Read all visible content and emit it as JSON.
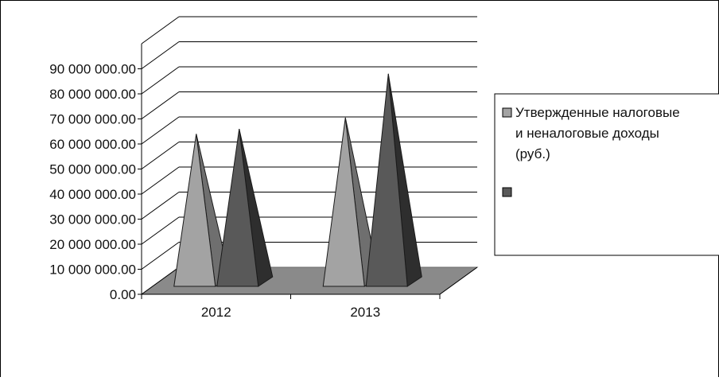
{
  "chart_data": {
    "type": "bar",
    "shape": "3d-cone",
    "categories": [
      "2012",
      "2013"
    ],
    "series": [
      {
        "name": "Утвержденные налоговые и неналоговые доходы (руб.)",
        "values": [
          64000000,
          70500000
        ]
      },
      {
        "name": "",
        "values": [
          66000000,
          88000000
        ]
      }
    ],
    "y_tick_labels": [
      "0.00",
      "10 000 000.00",
      "20 000 000.00",
      "30 000 000.00",
      "40 000 000.00",
      "50 000 000.00",
      "60 000 000.00",
      "70 000 000.00",
      "80 000 000.00",
      "90 000 000.00"
    ],
    "ylim": [
      0,
      100000000
    ],
    "grid": true,
    "legend_position": "right",
    "legend_lines": [
      "Утвержденные налоговые",
      "и неналоговые доходы",
      "(руб.)"
    ],
    "title": "",
    "xlabel": "",
    "ylabel": "",
    "colors": {
      "series_1": "#a3a3a3",
      "series_1_shade": "#6f6f6f",
      "series_2": "#595959",
      "series_2_shade": "#2e2e2e",
      "floor": "#8a8a8a",
      "floor_edge": "#6a6a6a",
      "grid": "#000000",
      "axis": "#000000"
    }
  }
}
